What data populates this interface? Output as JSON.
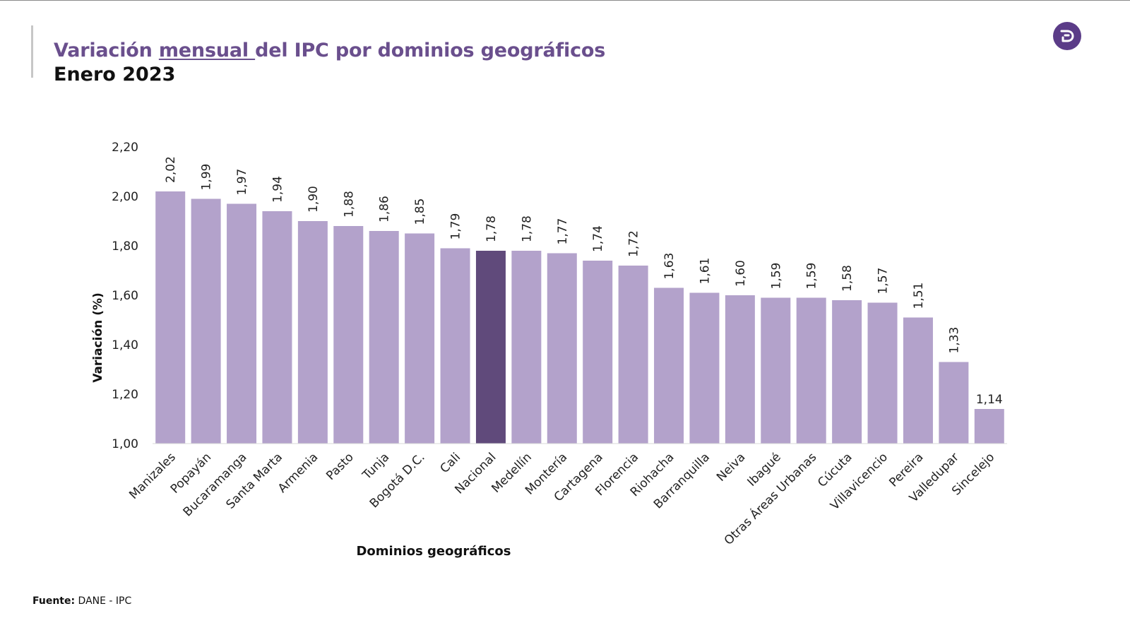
{
  "header": {
    "title_part1": "Variación ",
    "title_underlined": "mensual ",
    "title_part2": "del IPC por dominios geográficos",
    "subtitle": "Enero 2023"
  },
  "logo": {
    "icon": "dane-logo-icon",
    "color": "#5b3c88"
  },
  "footer": {
    "source_label": "Fuente:",
    "source_value": "DANE - IPC"
  },
  "colors": {
    "bar": "#b3a2cb",
    "highlight_bar": "#604a7b",
    "title": "#6a4f8d"
  },
  "chart_data": {
    "type": "bar",
    "title": "",
    "xlabel": "Dominios geográficos",
    "ylabel": "Variación (%)",
    "ylim": [
      1.0,
      2.2
    ],
    "yticks": [
      "1,00",
      "1,20",
      "1,40",
      "1,60",
      "1,80",
      "2,00",
      "2,20"
    ],
    "ytick_values": [
      1.0,
      1.2,
      1.4,
      1.6,
      1.8,
      2.0,
      2.2
    ],
    "highlight": "Nacional",
    "categories": [
      "Manizales",
      "Popayán",
      "Bucaramanga",
      "Santa Marta",
      "Armenia",
      "Pasto",
      "Tunja",
      "Bogotá D.C.",
      "Cali",
      "Nacional",
      "Medellín",
      "Montería",
      "Cartagena",
      "Florencia",
      "Riohacha",
      "Barranquilla",
      "Neiva",
      "Ibagué",
      "Otras Áreas Urbanas",
      "Cúcuta",
      "Villavicencio",
      "Pereira",
      "Valledupar",
      "Sincelejo"
    ],
    "values": [
      2.02,
      1.99,
      1.97,
      1.94,
      1.9,
      1.88,
      1.86,
      1.85,
      1.79,
      1.78,
      1.78,
      1.77,
      1.74,
      1.72,
      1.63,
      1.61,
      1.6,
      1.59,
      1.59,
      1.58,
      1.57,
      1.51,
      1.33,
      1.14
    ],
    "value_labels": [
      "2,02",
      "1,99",
      "1,97",
      "1,94",
      "1,90",
      "1,88",
      "1,86",
      "1,85",
      "1,79",
      "1,78",
      "1,78",
      "1,77",
      "1,74",
      "1,72",
      "1,63",
      "1,61",
      "1,60",
      "1,59",
      "1,59",
      "1,58",
      "1,57",
      "1,51",
      "1,33",
      "1,14"
    ],
    "horizontal_value_labels": [
      "Sincelejo"
    ]
  }
}
